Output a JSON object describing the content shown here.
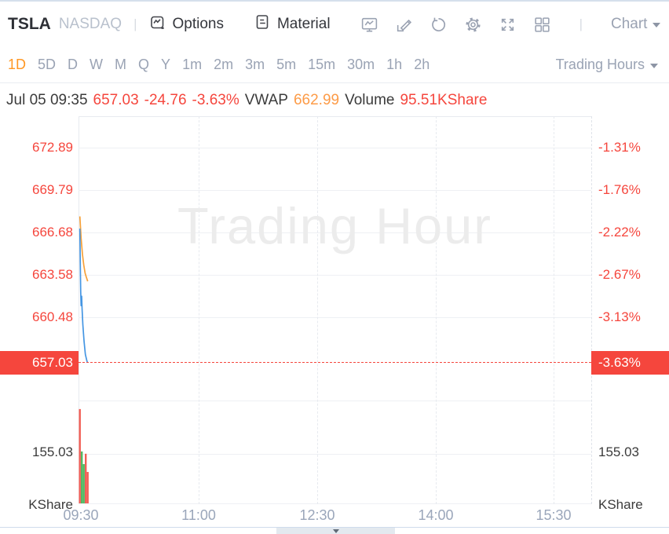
{
  "header": {
    "symbol": "TSLA",
    "exchange": "NASDAQ",
    "menu_options": "Options",
    "menu_material": "Material",
    "chart_view_label": "Chart"
  },
  "timeframes": {
    "items": [
      "1D",
      "5D",
      "D",
      "W",
      "M",
      "Q",
      "Y",
      "1m",
      "2m",
      "3m",
      "5m",
      "15m",
      "30m",
      "1h",
      "2h"
    ],
    "active": "1D",
    "session_selector": "Trading Hours"
  },
  "info_bar": {
    "datetime": "Jul 05 09:35",
    "price": "657.03",
    "change": "-24.76",
    "change_pct": "-3.63%",
    "vwap_label": "VWAP",
    "vwap": "662.99",
    "volume_label": "Volume",
    "volume": "95.51KShare"
  },
  "watermark": "Trading Hour",
  "axes": {
    "price_rows": [
      "672.89",
      "669.79",
      "666.68",
      "663.58",
      "660.48"
    ],
    "pct_rows": [
      "-1.31%",
      "-1.76%",
      "-2.22%",
      "-2.67%",
      "-3.13%"
    ],
    "current_price": "657.03",
    "current_pct": "-3.63%",
    "volume_level": "155.03",
    "volume_unit": "KShare",
    "times": [
      "09:30",
      "11:00",
      "12:30",
      "14:00",
      "15:30"
    ]
  },
  "colors": {
    "accent_red": "#f5463d",
    "accent_orange": "#ff9723",
    "price_line": "#4596e3",
    "vwap_line": "#f6a13a",
    "volume_up": "#52ba63",
    "volume_down": "#f15e56"
  },
  "chart_data": {
    "type": "line",
    "subtype": "intraday price + vwap + volume bars",
    "symbol": "TSLA",
    "title": "Trading Hour",
    "x_axis_ticks": [
      "09:30",
      "11:00",
      "12:30",
      "14:00",
      "15:30"
    ],
    "y_axis_price_ticks": [
      672.89,
      669.79,
      666.68,
      663.58,
      660.48,
      657.03
    ],
    "y_axis_pct_ticks": [
      "-1.31%",
      "-1.76%",
      "-2.22%",
      "-2.67%",
      "-3.13%",
      "-3.63%"
    ],
    "volume_axis_level_kshare": 155.03,
    "session_minutes": 390,
    "last": {
      "time": "Jul 05 09:35",
      "price": 657.03,
      "change": -24.76,
      "change_pct": "-3.63%",
      "vwap": 662.99,
      "volume": "95.51KShare"
    },
    "price_series": {
      "name": "Price",
      "points_min_price": [
        [
          1,
          666.9
        ],
        [
          1.3,
          664.5
        ],
        [
          1.7,
          662.2
        ],
        [
          2.0,
          661.2
        ],
        [
          2.4,
          661.9
        ],
        [
          2.7,
          661.0
        ],
        [
          3.3,
          659.8
        ],
        [
          4.2,
          658.6
        ],
        [
          5.2,
          657.6
        ],
        [
          6.4,
          657.1
        ],
        [
          6.8,
          657.03
        ]
      ]
    },
    "vwap_series": {
      "name": "VWAP",
      "points_min_price": [
        [
          1,
          667.8
        ],
        [
          2,
          666.2
        ],
        [
          3,
          665.0
        ],
        [
          4,
          664.2
        ],
        [
          5,
          663.6
        ],
        [
          6,
          663.3
        ],
        [
          7,
          663.0
        ]
      ]
    },
    "volume_series": {
      "name": "Volume",
      "unit": "KShare",
      "bars_min_valueK_dir": [
        [
          1,
          291,
          "down"
        ],
        [
          2.5,
          160,
          "up"
        ],
        [
          4,
          121,
          "up"
        ],
        [
          5.5,
          153,
          "down"
        ],
        [
          7,
          97,
          "down"
        ]
      ]
    }
  }
}
